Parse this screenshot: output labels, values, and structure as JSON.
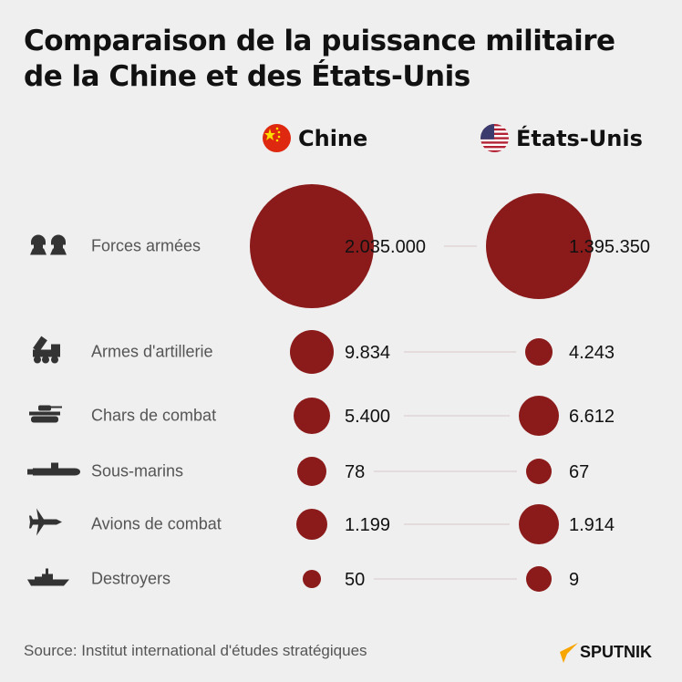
{
  "title_line1": "Comparaison de la puissance militaire",
  "title_line2": "de la Chine et des États-Unis",
  "columns": {
    "china": "Chine",
    "usa": "États-Unis"
  },
  "source": "Source: Institut international d'études stratégiques",
  "brand": "SPUTNIK",
  "colors": {
    "bubble": "#8b1a1a",
    "background": "#efefef",
    "connector": "#d9c9c9"
  },
  "chart_data": {
    "type": "bubble-comparison",
    "series": [
      {
        "name": "Chine"
      },
      {
        "name": "États-Unis"
      }
    ],
    "rows": [
      {
        "label": "Forces armées",
        "icon": "soldiers-icon",
        "china": "2.035.000",
        "usa": "1.395.350"
      },
      {
        "label": "Armes d'artillerie",
        "icon": "rocket-launcher-icon",
        "china": "9.834",
        "usa": "4.243"
      },
      {
        "label": "Chars de combat",
        "icon": "tank-icon",
        "china": "5.400",
        "usa": "6.612"
      },
      {
        "label": "Sous-marins",
        "icon": "submarine-icon",
        "china": "78",
        "usa": "67"
      },
      {
        "label": "Avions de combat",
        "icon": "fighter-jet-icon",
        "china": "1.199",
        "usa": "1.914"
      },
      {
        "label": "Destroyers",
        "icon": "destroyer-ship-icon",
        "china": "50",
        "usa": "9"
      }
    ]
  }
}
